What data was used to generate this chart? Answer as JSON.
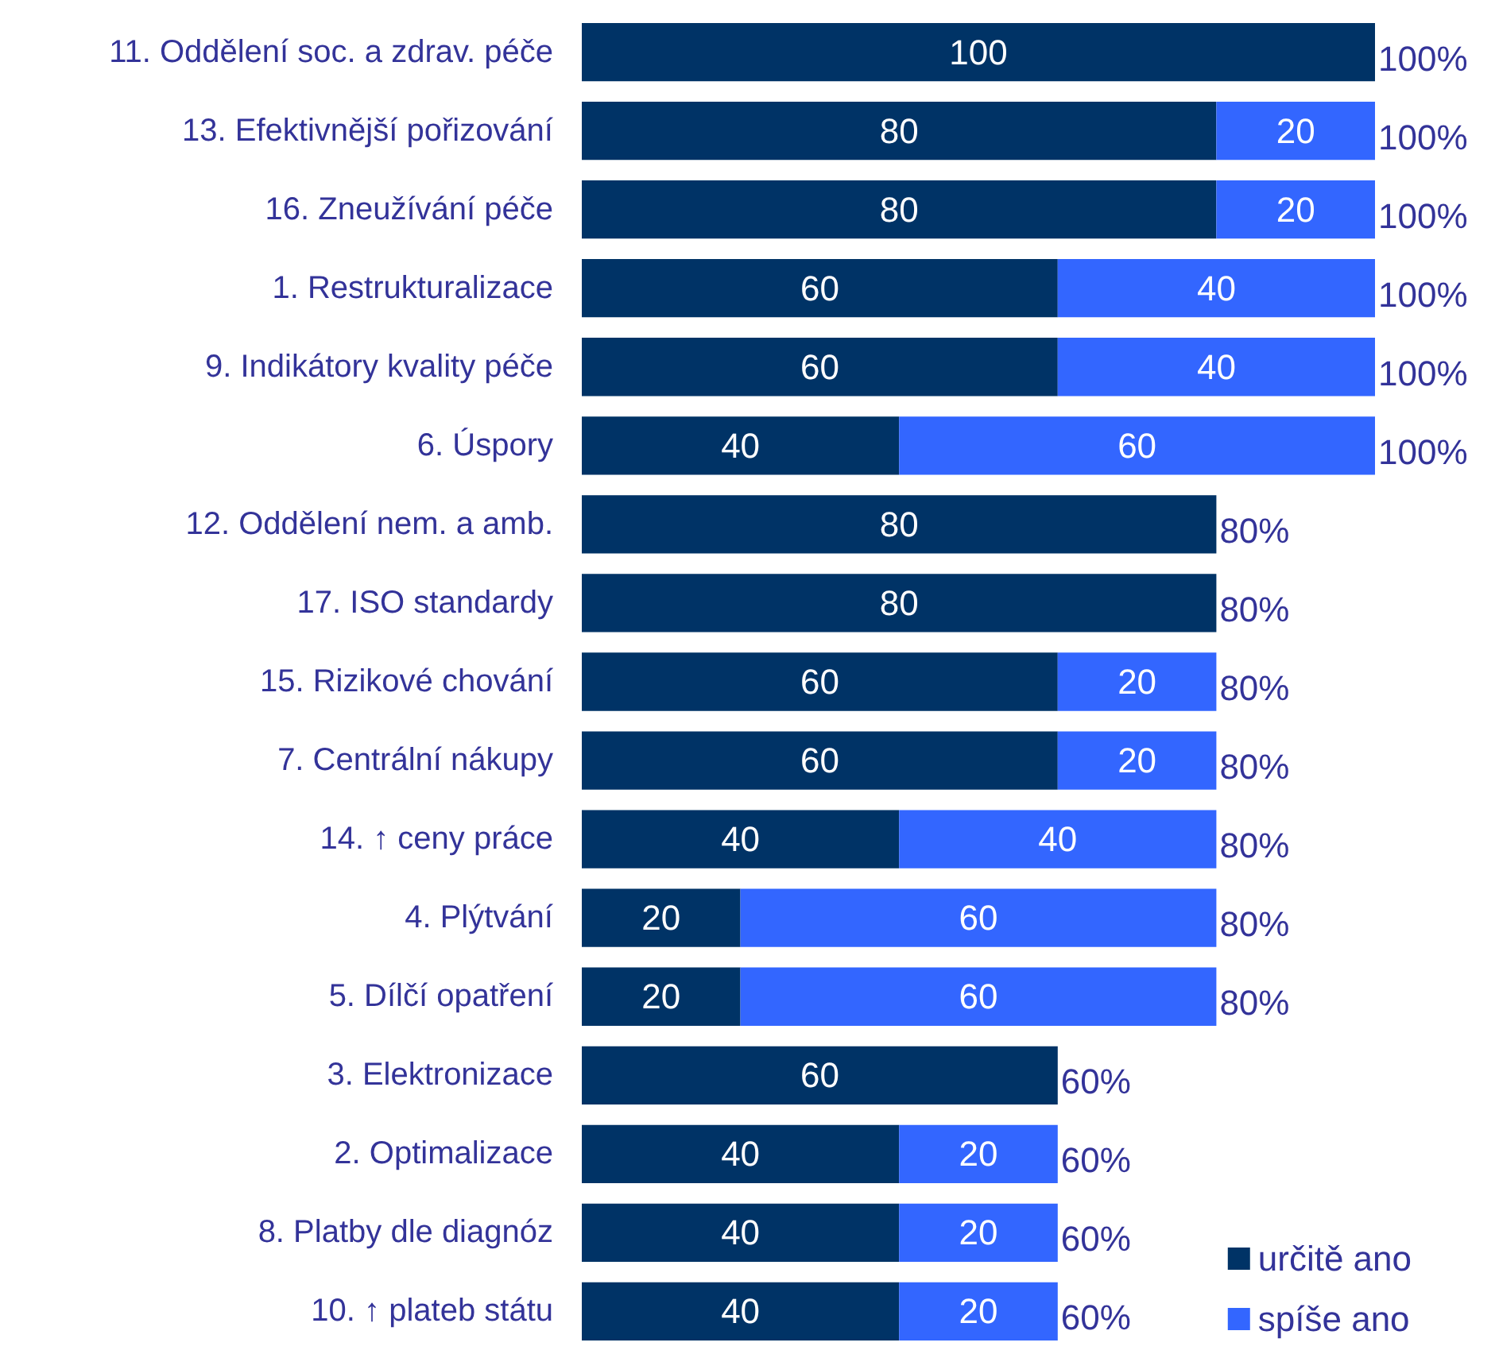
{
  "chart_data": {
    "type": "bar",
    "orientation": "horizontal",
    "stacked": true,
    "data_labels": true,
    "grid": false,
    "tick_labels": "y",
    "legend": "bottom right",
    "categories": [
      "11. Oddělení soc. a zdrav. péče",
      "13. Efektivnější pořizování",
      "16. Zneužívání péče",
      "1. Restrukturalizace",
      "9. Indikátory kvality péče",
      "6. Úspory",
      "12. Oddělení nem. a amb.",
      "17. ISO standardy",
      "15. Rizikové chování",
      "7. Centrální nákupy",
      "14. ↑ ceny práce",
      "4. Plýtvání",
      "5. Dílčí opatření",
      "3. Elektronizace",
      "2. Optimalizace",
      "8. Platby dle diagnóz",
      "10. ↑ plateb státu"
    ],
    "xlim": [
      0,
      100
    ],
    "series": [
      {
        "name": "určitě ano",
        "color": "#003366",
        "values": [
          100,
          80,
          80,
          60,
          60,
          40,
          80,
          80,
          60,
          60,
          40,
          20,
          20,
          60,
          40,
          40,
          40
        ]
      },
      {
        "name": "spíše ano",
        "color": "#3366ff",
        "values": [
          null,
          20,
          20,
          40,
          40,
          60,
          null,
          null,
          20,
          20,
          40,
          60,
          60,
          null,
          20,
          20,
          20
        ]
      }
    ],
    "totals": [
      "100%",
      "100%",
      "100%",
      "100%",
      "100%",
      "100%",
      "80%",
      "80%",
      "80%",
      "80%",
      "80%",
      "80%",
      "80%",
      "60%",
      "60%",
      "60%",
      "60%"
    ]
  }
}
